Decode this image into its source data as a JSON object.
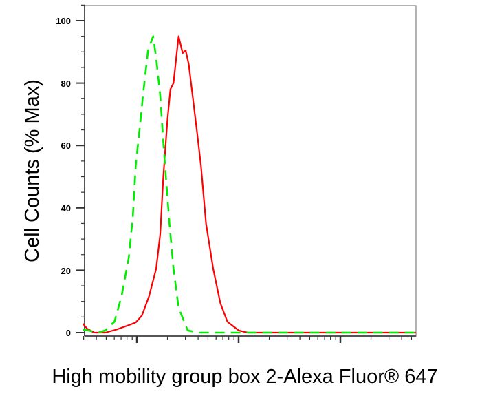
{
  "chart_data": {
    "type": "line",
    "title": "",
    "xlabel": "High mobility group box 2-Alexa Fluor® 647",
    "ylabel": "Cell Counts (% Max)",
    "x_scale": "log",
    "x_tick_labels_shown": false,
    "xlim_log10": [
      0.47,
      3.74
    ],
    "ylim": [
      0,
      105
    ],
    "yticks": [
      "0",
      "20",
      "40",
      "60",
      "80",
      "100"
    ],
    "ytick_values": [
      0,
      20,
      40,
      60,
      80,
      100
    ],
    "grid": false,
    "legend": "none",
    "series": [
      {
        "color": "#ff0000",
        "style": "solid",
        "x_log10": [
          0.47,
          0.51,
          0.58,
          0.69,
          0.8,
          0.92,
          0.99,
          1.05,
          1.12,
          1.19,
          1.23,
          1.26,
          1.3,
          1.33,
          1.36,
          1.41,
          1.45,
          1.48,
          1.51,
          1.59,
          1.63,
          1.68,
          1.75,
          1.82,
          1.89,
          2.0,
          2.09,
          3.74
        ],
        "y": [
          2.9,
          1.3,
          0,
          0,
          1,
          2.4,
          3.3,
          5.5,
          11.7,
          20.5,
          31.6,
          50,
          68,
          78,
          80,
          95,
          89.6,
          90.5,
          86,
          64.7,
          53.6,
          35,
          20.5,
          9.5,
          3.5,
          0.7,
          0,
          0
        ]
      },
      {
        "color": "#00ee00",
        "style": "dashed",
        "x_log10": [
          0.47,
          0.55,
          0.62,
          0.69,
          0.78,
          0.85,
          0.92,
          0.96,
          0.99,
          1.03,
          1.06,
          1.11,
          1.16,
          1.19,
          1.23,
          1.26,
          1.29,
          1.32,
          1.36,
          1.41,
          1.5,
          1.61,
          3.74
        ],
        "y": [
          1.0,
          0.5,
          0,
          0.7,
          3.5,
          11.7,
          24,
          37,
          54,
          66,
          76,
          90.5,
          95,
          88,
          76,
          61,
          48,
          35,
          20.5,
          8,
          0.7,
          0,
          0
        ]
      }
    ]
  }
}
